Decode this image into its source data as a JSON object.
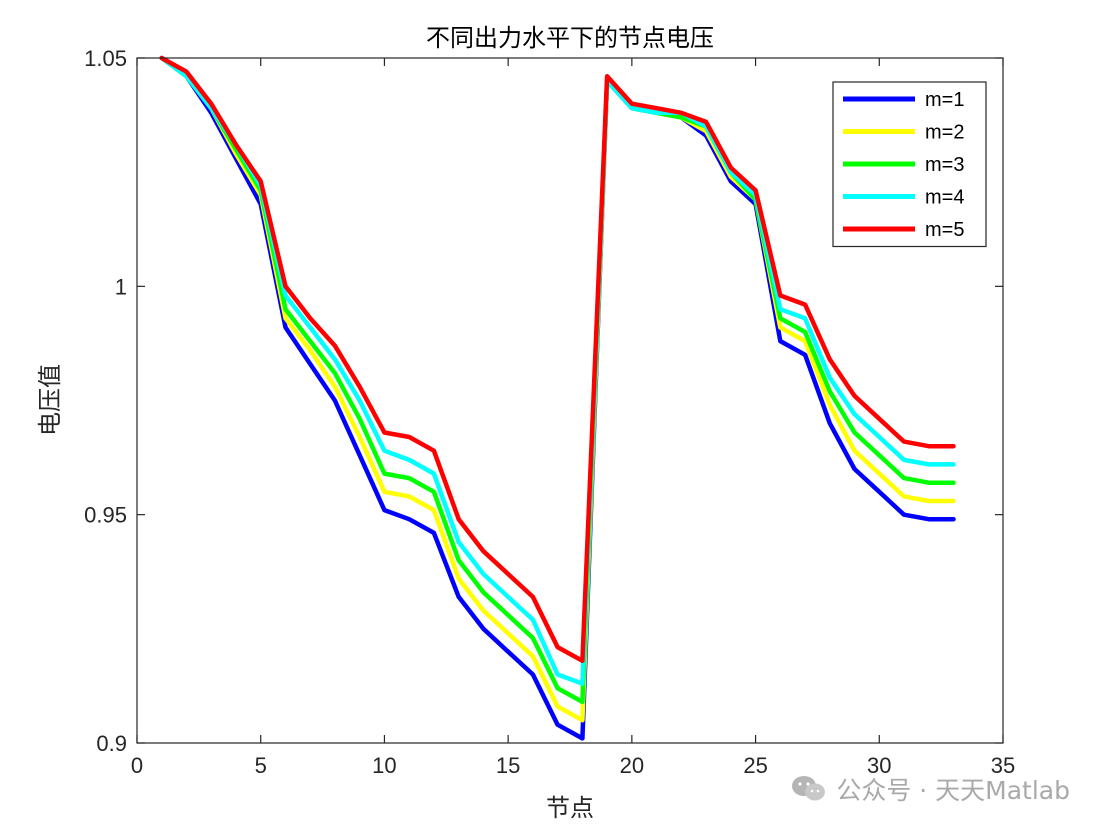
{
  "chart_data": {
    "type": "line",
    "title": "不同出力水平下的节点电压",
    "xlabel": "节点",
    "ylabel": "电压值",
    "xlim": [
      0,
      35
    ],
    "ylim": [
      0.9,
      1.05
    ],
    "xticks": [
      0,
      5,
      10,
      15,
      20,
      25,
      30,
      35
    ],
    "xtick_labels": [
      "0",
      "5",
      "10",
      "15",
      "20",
      "25",
      "30",
      "35"
    ],
    "yticks": [
      0.9,
      0.95,
      1.0,
      1.05
    ],
    "ytick_labels": [
      "0.9",
      "0.95",
      "1",
      "1.05"
    ],
    "legend_position": "top-right",
    "grid": false,
    "x": [
      1,
      2,
      3,
      4,
      5,
      6,
      7,
      8,
      9,
      10,
      11,
      12,
      13,
      14,
      15,
      16,
      17,
      18,
      19,
      20,
      21,
      22,
      23,
      24,
      25,
      26,
      27,
      28,
      29,
      30,
      31,
      32,
      33
    ],
    "series": [
      {
        "name": "m=1",
        "color": "#0000ff",
        "values": [
          1.05,
          1.046,
          1.038,
          1.028,
          1.018,
          0.991,
          0.983,
          0.975,
          0.963,
          0.951,
          0.949,
          0.946,
          0.932,
          0.925,
          0.92,
          0.915,
          0.904,
          0.901,
          1.045,
          1.039,
          1.038,
          1.037,
          1.033,
          1.023,
          1.018,
          0.988,
          0.985,
          0.97,
          0.96,
          0.955,
          0.95,
          0.949,
          0.949
        ]
      },
      {
        "name": "m=2",
        "color": "#ffff00",
        "values": [
          1.05,
          1.046,
          1.039,
          1.029,
          1.02,
          0.993,
          0.986,
          0.978,
          0.967,
          0.955,
          0.954,
          0.951,
          0.936,
          0.929,
          0.924,
          0.919,
          0.908,
          0.905,
          1.045,
          1.039,
          1.038,
          1.037,
          1.034,
          1.024,
          1.019,
          0.991,
          0.988,
          0.974,
          0.964,
          0.959,
          0.954,
          0.953,
          0.953
        ]
      },
      {
        "name": "m=3",
        "color": "#00ff00",
        "values": [
          1.05,
          1.046,
          1.039,
          1.03,
          1.021,
          0.995,
          0.988,
          0.981,
          0.971,
          0.959,
          0.958,
          0.955,
          0.94,
          0.933,
          0.928,
          0.923,
          0.912,
          0.909,
          1.045,
          1.039,
          1.038,
          1.037,
          1.035,
          1.025,
          1.019,
          0.993,
          0.99,
          0.977,
          0.968,
          0.963,
          0.958,
          0.957,
          0.957
        ]
      },
      {
        "name": "m=4",
        "color": "#00ffff",
        "values": [
          1.05,
          1.046,
          1.039,
          1.031,
          1.022,
          0.998,
          0.991,
          0.984,
          0.975,
          0.964,
          0.962,
          0.959,
          0.944,
          0.937,
          0.932,
          0.927,
          0.915,
          0.913,
          1.045,
          1.039,
          1.038,
          1.038,
          1.035,
          1.025,
          1.02,
          0.995,
          0.993,
          0.98,
          0.972,
          0.967,
          0.962,
          0.961,
          0.961
        ]
      },
      {
        "name": "m=5",
        "color": "#ff0000",
        "values": [
          1.05,
          1.047,
          1.04,
          1.031,
          1.023,
          1.0,
          0.993,
          0.987,
          0.978,
          0.968,
          0.967,
          0.964,
          0.949,
          0.942,
          0.937,
          0.932,
          0.921,
          0.918,
          1.046,
          1.04,
          1.039,
          1.038,
          1.036,
          1.026,
          1.021,
          0.998,
          0.996,
          0.984,
          0.976,
          0.971,
          0.966,
          0.965,
          0.965
        ]
      }
    ]
  },
  "watermark": {
    "icon": "wechat-icon",
    "text": "公众号 · 天天Matlab"
  }
}
